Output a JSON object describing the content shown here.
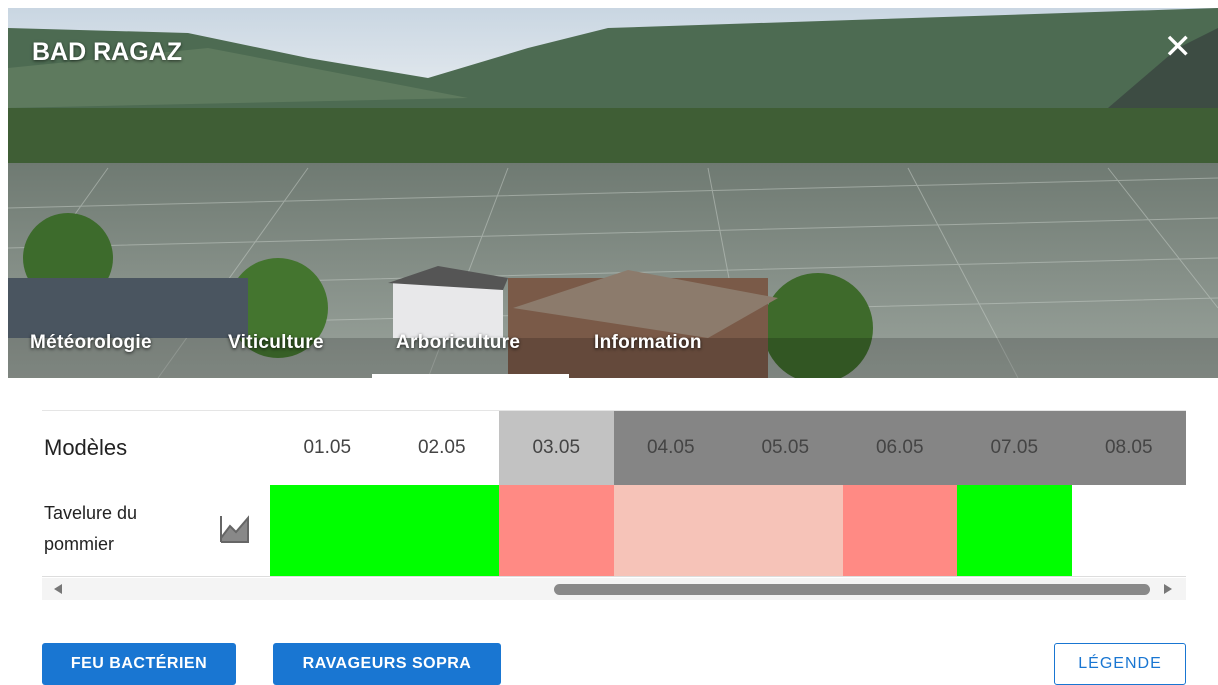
{
  "header": {
    "title": "BAD RAGAZ",
    "tabs": [
      "Météorologie",
      "Viticulture",
      "Arboriculture",
      "Information"
    ],
    "active_tab": 2
  },
  "table": {
    "header": "Modèles",
    "dates": [
      "01.05",
      "02.05",
      "03.05",
      "04.05",
      "05.05",
      "06.05",
      "07.05",
      "08.05"
    ],
    "date_colors": [
      "#ffffff",
      "#ffffff",
      "#c2c2c2",
      "#858585",
      "#858585",
      "#858585",
      "#858585",
      "#858585"
    ],
    "rows": [
      {
        "label": "Tavelure du pommier",
        "cells": [
          "#00ff00",
          "#00ff00",
          "#ff8a84",
          "#f6c3b8",
          "#f6c3b8",
          "#ff8a84",
          "#00ff00",
          "#ffffff"
        ]
      }
    ]
  },
  "buttons": [
    "FEU BACTÉRIEN",
    "RAVAGEURS SOPRA"
  ],
  "legend_button": "LÉGENDE"
}
